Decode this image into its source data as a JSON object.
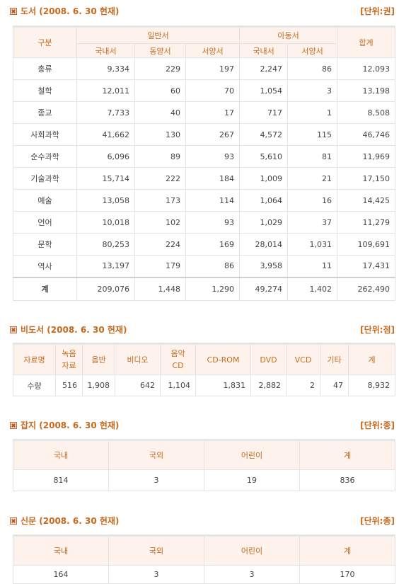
{
  "books": {
    "title": "도서 (2008. 6. 30 현재)",
    "unit": "[단위:권]",
    "head_category": "구분",
    "head_general": "일반서",
    "head_children": "아동서",
    "head_total": "합계",
    "sub_general": [
      "국내서",
      "동양서",
      "서양서"
    ],
    "sub_children": [
      "국내서",
      "서양서"
    ],
    "rows": [
      {
        "label": "총류",
        "values": [
          "9,334",
          "229",
          "197",
          "2,247",
          "86",
          "12,093"
        ]
      },
      {
        "label": "철학",
        "values": [
          "12,011",
          "60",
          "70",
          "1,054",
          "3",
          "13,198"
        ]
      },
      {
        "label": "종교",
        "values": [
          "7,733",
          "40",
          "17",
          "717",
          "1",
          "8,508"
        ]
      },
      {
        "label": "사회과학",
        "values": [
          "41,662",
          "130",
          "267",
          "4,572",
          "115",
          "46,746"
        ]
      },
      {
        "label": "순수과학",
        "values": [
          "6,096",
          "89",
          "93",
          "5,610",
          "81",
          "11,969"
        ]
      },
      {
        "label": "기술과학",
        "values": [
          "15,714",
          "222",
          "184",
          "1,009",
          "21",
          "17,150"
        ]
      },
      {
        "label": "예술",
        "values": [
          "13,058",
          "173",
          "114",
          "1,064",
          "16",
          "14,425"
        ]
      },
      {
        "label": "언어",
        "values": [
          "10,018",
          "102",
          "93",
          "1,029",
          "37",
          "11,279"
        ]
      },
      {
        "label": "문학",
        "values": [
          "80,253",
          "224",
          "169",
          "28,014",
          "1,031",
          "109,691"
        ]
      },
      {
        "label": "역사",
        "values": [
          "13,197",
          "179",
          "86",
          "3,958",
          "11",
          "17,431"
        ]
      }
    ],
    "total": {
      "label": "계",
      "values": [
        "209,076",
        "1,448",
        "1,290",
        "49,274",
        "1,402",
        "262,490"
      ]
    }
  },
  "nonbook": {
    "title": "비도서 (2008. 6. 30 현재)",
    "unit": "[단위:점]",
    "headers": [
      "자료명",
      "녹음\n자료",
      "음반",
      "비디오",
      "음악\nCD",
      "CD-ROM",
      "DVD",
      "VCD",
      "기타",
      "계"
    ],
    "row_label": "수량",
    "values": [
      "516",
      "1,908",
      "642",
      "1,104",
      "1,831",
      "2,882",
      "2",
      "47",
      "8,932"
    ]
  },
  "magazine": {
    "title": "잡지 (2008. 6. 30 현재)",
    "unit": "[단위:종]",
    "headers": [
      "국내",
      "국외",
      "어린이",
      "계"
    ],
    "values": [
      "814",
      "3",
      "19",
      "836"
    ]
  },
  "newspaper": {
    "title": "신문 (2008. 6. 30 현재)",
    "unit": "[단위:종]",
    "headers": [
      "국내",
      "국외",
      "어린이",
      "계"
    ],
    "values": [
      "164",
      "3",
      "3",
      "170"
    ]
  }
}
